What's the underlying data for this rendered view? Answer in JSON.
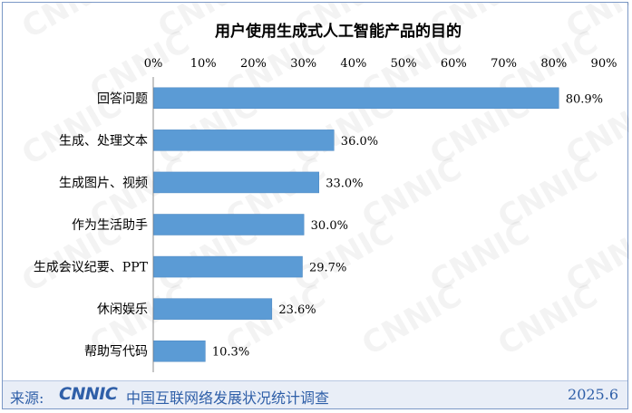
{
  "chart_data": {
    "type": "bar",
    "orientation": "horizontal",
    "title": "用户使用生成式人工智能产品的目的",
    "categories": [
      "回答问题",
      "生成、处理文本",
      "生成图片、视频",
      "作为生活助手",
      "生成会议纪要、PPT",
      "休闲娱乐",
      "帮助写代码"
    ],
    "values": [
      80.9,
      36.0,
      33.0,
      30.0,
      29.7,
      23.6,
      10.3
    ],
    "value_labels": [
      "80.9%",
      "36.0%",
      "33.0%",
      "30.0%",
      "29.7%",
      "23.6%",
      "10.3%"
    ],
    "xlim": [
      0,
      90
    ],
    "x_ticks": [
      "0%",
      "10%",
      "20%",
      "30%",
      "40%",
      "50%",
      "60%",
      "70%",
      "80%",
      "90%"
    ],
    "x_axis_position": "top",
    "grid": false,
    "bar_color": "#5b9bd5"
  },
  "watermark": "CNNIC",
  "footer": {
    "source_label": "来源:",
    "logo_text": "CNNIC",
    "organization": "中国互联网络发展状况统计调查",
    "date": "2025.6"
  }
}
